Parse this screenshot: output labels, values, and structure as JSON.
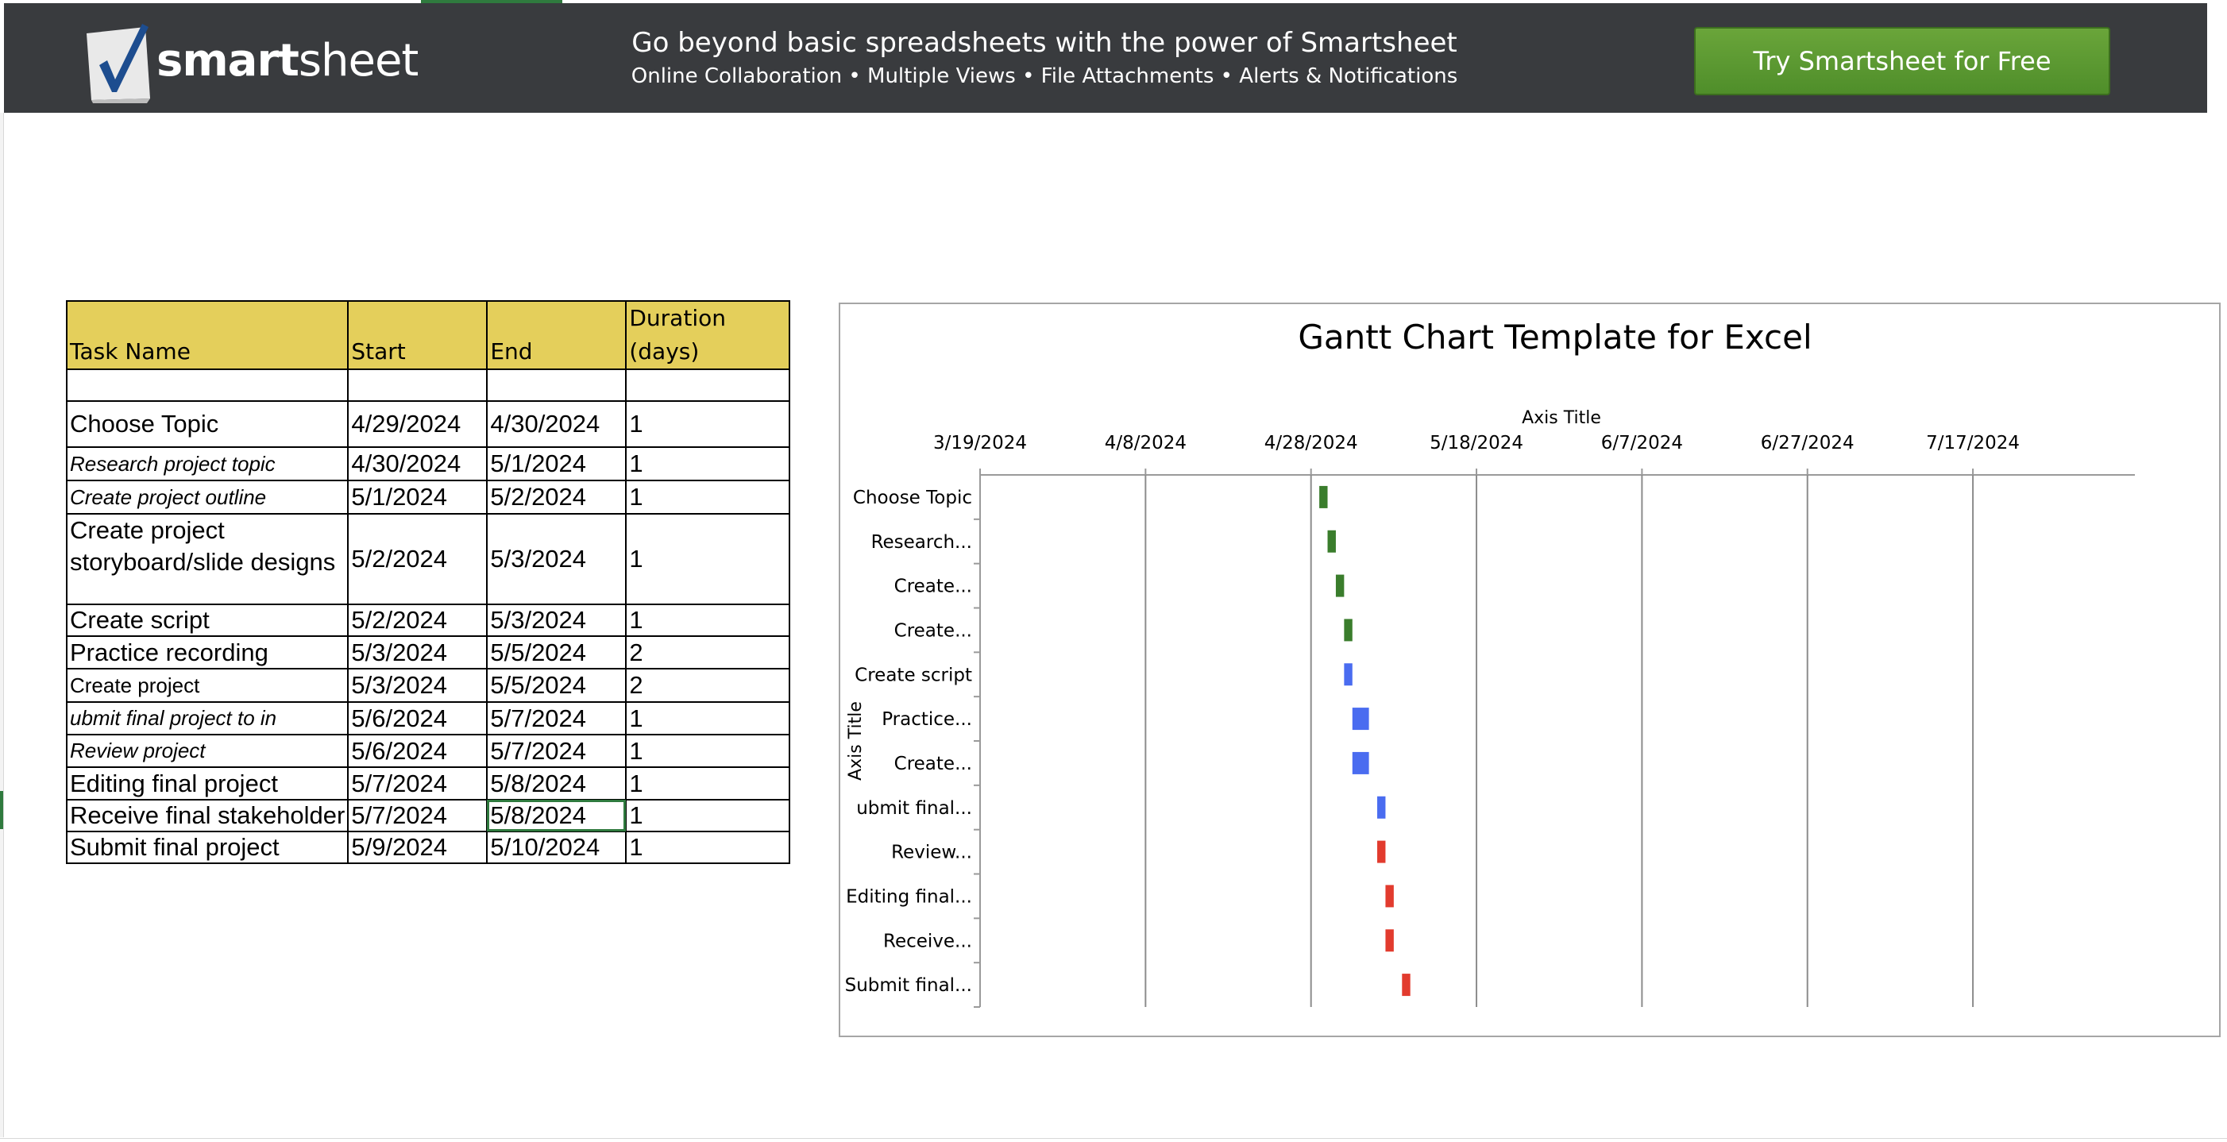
{
  "banner": {
    "logo_text_bold": "smart",
    "logo_text_rest": "sheet",
    "tagline_main": "Go beyond basic spreadsheets with the power of Smartsheet",
    "tagline_sub": "Online Collaboration • Multiple Views • File Attachments • Alerts & Notifications",
    "cta_label": "Try Smartsheet for Free",
    "colors": {
      "background": "#393b3e",
      "cta": "#5a9a31"
    }
  },
  "table": {
    "headers": {
      "task": "Task Name",
      "start": "Start",
      "end": "End",
      "duration": "Duration (days)"
    },
    "rows": [
      {
        "task": "",
        "start": "",
        "end": "",
        "duration": ""
      },
      {
        "task": "Choose Topic",
        "start": "4/29/2024",
        "end": "4/30/2024",
        "duration": "1"
      },
      {
        "task": "Research project topic",
        "start": "4/30/2024",
        "end": "5/1/2024",
        "duration": "1"
      },
      {
        "task": "Create project outline",
        "start": "5/1/2024",
        "end": "5/2/2024",
        "duration": "1"
      },
      {
        "task": "Create project storyboard/slide designs",
        "start": "5/2/2024",
        "end": "5/3/2024",
        "duration": "1"
      },
      {
        "task": "Create script",
        "start": "5/2/2024",
        "end": "5/3/2024",
        "duration": "1"
      },
      {
        "task": "Practice recording",
        "start": "5/3/2024",
        "end": "5/5/2024",
        "duration": "2"
      },
      {
        "task": "Create project",
        "start": "5/3/2024",
        "end": "5/5/2024",
        "duration": "2"
      },
      {
        "task": "ubmit final project to in",
        "start": "5/6/2024",
        "end": "5/7/2024",
        "duration": "1"
      },
      {
        "task": "Review project",
        "start": "5/6/2024",
        "end": "5/7/2024",
        "duration": "1"
      },
      {
        "task": "Editing final project",
        "start": "5/7/2024",
        "end": "5/8/2024",
        "duration": "1"
      },
      {
        "task": "Receive final stakeholder",
        "start": "5/7/2024",
        "end": "5/8/2024",
        "duration": "1"
      },
      {
        "task": "Submit final project",
        "start": "5/9/2024",
        "end": "5/10/2024",
        "duration": "1"
      }
    ]
  },
  "chart_data": {
    "type": "bar",
    "orientation": "horizontal-gantt",
    "title": "Gantt Chart Template for Excel",
    "xlabel": "Axis Title",
    "ylabel": "Axis Title",
    "x_ticks": [
      "3/19/2024",
      "4/8/2024",
      "4/28/2024",
      "5/18/2024",
      "6/7/2024",
      "6/27/2024",
      "7/17/2024"
    ],
    "xlim": [
      "3/19/2024",
      "8/5/2024"
    ],
    "grid": true,
    "categories": [
      "Choose Topic",
      "Research...",
      "Create...",
      "Create...",
      "Create script",
      "Practice...",
      "Create...",
      "ubmit final...",
      "Review...",
      "Editing final...",
      "Receive...",
      "Submit final..."
    ],
    "series": [
      {
        "color": "#3a7d2c",
        "tasks": [
          {
            "category_index": 0,
            "start": "4/29/2024",
            "duration": 1
          },
          {
            "category_index": 1,
            "start": "4/30/2024",
            "duration": 1
          },
          {
            "category_index": 2,
            "start": "5/1/2024",
            "duration": 1
          },
          {
            "category_index": 3,
            "start": "5/2/2024",
            "duration": 1
          }
        ]
      },
      {
        "color": "#4a6cf0",
        "tasks": [
          {
            "category_index": 4,
            "start": "5/2/2024",
            "duration": 1
          },
          {
            "category_index": 5,
            "start": "5/3/2024",
            "duration": 2
          },
          {
            "category_index": 6,
            "start": "5/3/2024",
            "duration": 2
          },
          {
            "category_index": 7,
            "start": "5/6/2024",
            "duration": 1
          }
        ]
      },
      {
        "color": "#e23b2e",
        "tasks": [
          {
            "category_index": 8,
            "start": "5/6/2024",
            "duration": 1
          },
          {
            "category_index": 9,
            "start": "5/7/2024",
            "duration": 1
          },
          {
            "category_index": 10,
            "start": "5/7/2024",
            "duration": 1
          },
          {
            "category_index": 11,
            "start": "5/9/2024",
            "duration": 1
          }
        ]
      }
    ]
  }
}
